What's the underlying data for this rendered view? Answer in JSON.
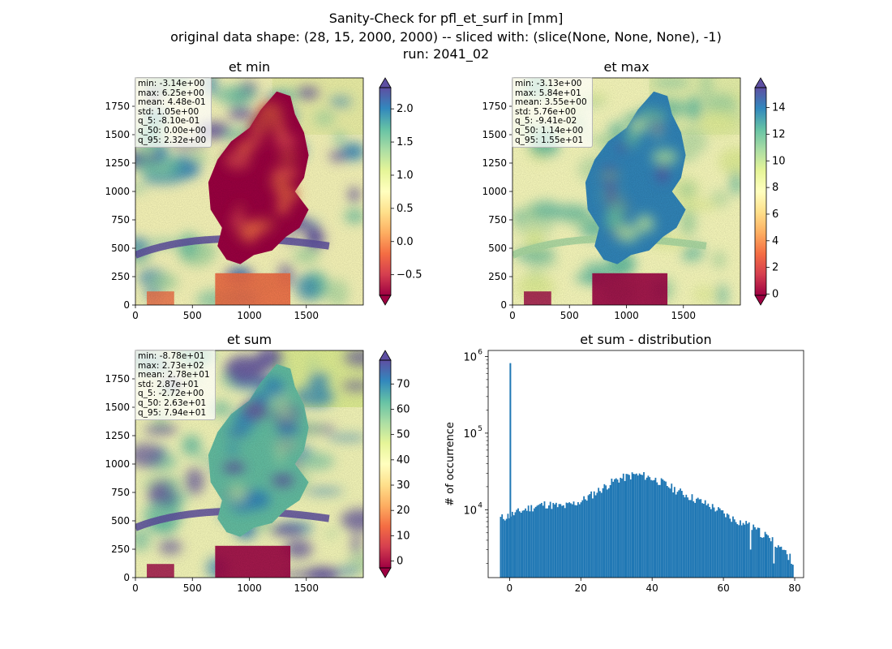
{
  "figure": {
    "title": "Sanity-Check for pfl_et_surf in [mm]",
    "subtitle": "original data shape: (28, 15, 2000, 2000) -- sliced with: (slice(None, None, None), -1)",
    "run": "run: 2041_02"
  },
  "colors": {
    "colormap_spectral": [
      "#9e0142",
      "#d53e4f",
      "#f46d43",
      "#fdae61",
      "#fee08b",
      "#ffffbf",
      "#e6f598",
      "#abdda4",
      "#66c2a5",
      "#3288bd",
      "#5e4fa2"
    ],
    "hist_bar": "#1f77b4",
    "stat_box_border": "#b8b8b8"
  },
  "maps": [
    {
      "id": "et-min",
      "title": "et min",
      "stats": [
        "min: -3.14e+00",
        "max: 6.25e+00",
        "mean: 4.48e-01",
        "std: 1.05e+00",
        "q_5: -8.10e-01",
        "q_50: 0.00e+00",
        "q_95: 2.32e+00"
      ],
      "colorbar": {
        "vmin": -0.81,
        "vmax": 2.32,
        "ticks": [
          -0.5,
          0.0,
          0.5,
          1.0,
          1.5,
          2.0
        ],
        "tick_labels": [
          "−0.5",
          "0.0",
          "0.5",
          "1.0",
          "1.5",
          "2.0"
        ],
        "extend": "both"
      },
      "xticks": [
        0,
        500,
        1000,
        1500
      ],
      "yticks": [
        0,
        250,
        500,
        750,
        1000,
        1250,
        1500,
        1750
      ],
      "axis_range": [
        0,
        2000
      ]
    },
    {
      "id": "et-max",
      "title": "et max",
      "stats": [
        "min: -3.13e+00",
        "max: 5.84e+01",
        "mean: 3.55e+00",
        "std: 5.76e+00",
        "q_5: -9.41e-02",
        "q_50: 1.14e+00",
        "q_95: 1.55e+01"
      ],
      "colorbar": {
        "vmin": -0.094,
        "vmax": 15.5,
        "ticks": [
          0,
          2,
          4,
          6,
          8,
          10,
          12,
          14
        ],
        "tick_labels": [
          "0",
          "2",
          "4",
          "6",
          "8",
          "10",
          "12",
          "14"
        ],
        "extend": "both"
      },
      "xticks": [
        0,
        500,
        1000,
        1500
      ],
      "yticks": [
        0,
        250,
        500,
        750,
        1000,
        1250,
        1500,
        1750
      ],
      "axis_range": [
        0,
        2000
      ]
    },
    {
      "id": "et-sum",
      "title": "et sum",
      "stats": [
        "min: -8.78e+01",
        "max: 2.73e+02",
        "mean: 2.78e+01",
        "std: 2.87e+01",
        "q_5: -2.72e+00",
        "q_50: 2.63e+01",
        "q_95: 7.94e+01"
      ],
      "colorbar": {
        "vmin": -2.72,
        "vmax": 79.4,
        "ticks": [
          0,
          10,
          20,
          30,
          40,
          50,
          60,
          70
        ],
        "tick_labels": [
          "0",
          "10",
          "20",
          "30",
          "40",
          "50",
          "60",
          "70"
        ],
        "extend": "both"
      },
      "xticks": [
        0,
        500,
        1000,
        1500
      ],
      "yticks": [
        0,
        250,
        500,
        750,
        1000,
        1250,
        1500,
        1750
      ],
      "axis_range": [
        0,
        2000
      ]
    }
  ],
  "chart_data": {
    "type": "bar",
    "title": "et sum - distribution",
    "xlabel": "",
    "ylabel": "# of occurrence",
    "yscale": "log",
    "xlim": [
      -6,
      82.5
    ],
    "ylim": [
      1300,
      1200000
    ],
    "xticks": [
      0,
      20,
      40,
      60,
      80
    ],
    "yticks": [
      10000,
      100000,
      1000000
    ],
    "ytick_labels": [
      {
        "base": "10",
        "exp": "4"
      },
      {
        "base": "10",
        "exp": "5"
      },
      {
        "base": "10",
        "exp": "6"
      }
    ],
    "bin_width": 0.41,
    "spike": {
      "x": 0,
      "count": 820000
    },
    "profile": [
      [
        -2.7,
        7800
      ],
      [
        0,
        8500
      ],
      [
        5,
        10500
      ],
      [
        10,
        12000
      ],
      [
        15,
        11000
      ],
      [
        20,
        13000
      ],
      [
        25,
        18000
      ],
      [
        30,
        25000
      ],
      [
        35,
        29000
      ],
      [
        38,
        28000
      ],
      [
        42,
        24000
      ],
      [
        47,
        18000
      ],
      [
        52,
        14000
      ],
      [
        57,
        11000
      ],
      [
        62,
        8000
      ],
      [
        67,
        6300
      ],
      [
        72,
        4600
      ],
      [
        76,
        3300
      ],
      [
        79.4,
        2200
      ]
    ]
  }
}
